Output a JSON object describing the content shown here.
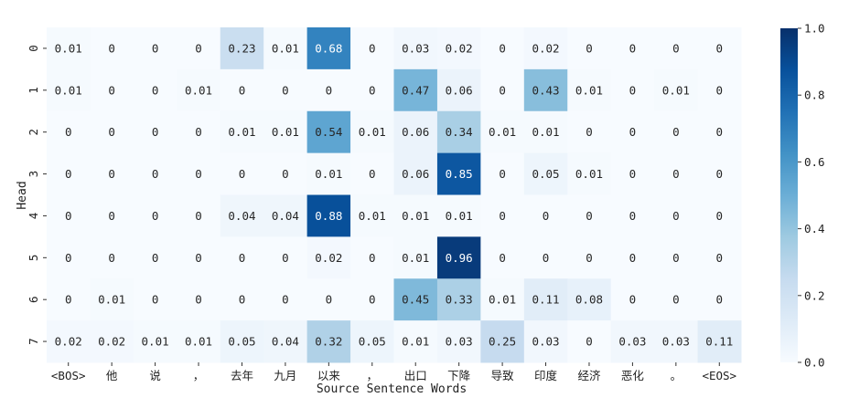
{
  "chart_data": {
    "type": "heatmap",
    "xlabel": "Source Sentence Words",
    "ylabel": "Head",
    "x_categories": [
      "<BOS>",
      "他",
      "说",
      "，",
      "去年",
      "九月",
      "以来",
      "，",
      "出口",
      "下降",
      "导致",
      "印度",
      "经济",
      "恶化",
      "。",
      "<EOS>"
    ],
    "y_categories": [
      "0",
      "1",
      "2",
      "3",
      "4",
      "5",
      "6",
      "7"
    ],
    "values": [
      [
        0.01,
        0,
        0,
        0,
        0.23,
        0.01,
        0.68,
        0,
        0.03,
        0.02,
        0,
        0.02,
        0,
        0,
        0,
        0
      ],
      [
        0.01,
        0,
        0,
        0.01,
        0,
        0,
        0,
        0,
        0.47,
        0.06,
        0,
        0.43,
        0.01,
        0,
        0.01,
        0
      ],
      [
        0,
        0,
        0,
        0,
        0.01,
        0.01,
        0.54,
        0.01,
        0.06,
        0.34,
        0.01,
        0.01,
        0,
        0,
        0,
        0
      ],
      [
        0,
        0,
        0,
        0,
        0,
        0,
        0.01,
        0,
        0.06,
        0.85,
        0,
        0.05,
        0.01,
        0,
        0,
        0
      ],
      [
        0,
        0,
        0,
        0,
        0.04,
        0.04,
        0.88,
        0.01,
        0.01,
        0.01,
        0,
        0,
        0,
        0,
        0,
        0
      ],
      [
        0,
        0,
        0,
        0,
        0,
        0,
        0.02,
        0,
        0.01,
        0.96,
        0,
        0,
        0,
        0,
        0,
        0
      ],
      [
        0,
        0.01,
        0,
        0,
        0,
        0,
        0,
        0,
        0.45,
        0.33,
        0.01,
        0.11,
        0.08,
        0,
        0,
        0
      ],
      [
        0.02,
        0.02,
        0.01,
        0.01,
        0.05,
        0.04,
        0.32,
        0.05,
        0.01,
        0.03,
        0.25,
        0.03,
        0,
        0.03,
        0.03,
        0.11
      ]
    ],
    "value_range": [
      0.0,
      1.0
    ],
    "colormap": "Blues",
    "colormap_stops": [
      "#f7fbff",
      "#deebf7",
      "#c6dbef",
      "#9ecae1",
      "#6baed6",
      "#4292c6",
      "#2171b5",
      "#08519c",
      "#08306b"
    ],
    "colorbar": {
      "ticks": [
        "0.0",
        "0.2",
        "0.4",
        "0.6",
        "0.8",
        "1.0"
      ],
      "placement": "right"
    },
    "annotations": "cell values shown",
    "grid": false
  }
}
